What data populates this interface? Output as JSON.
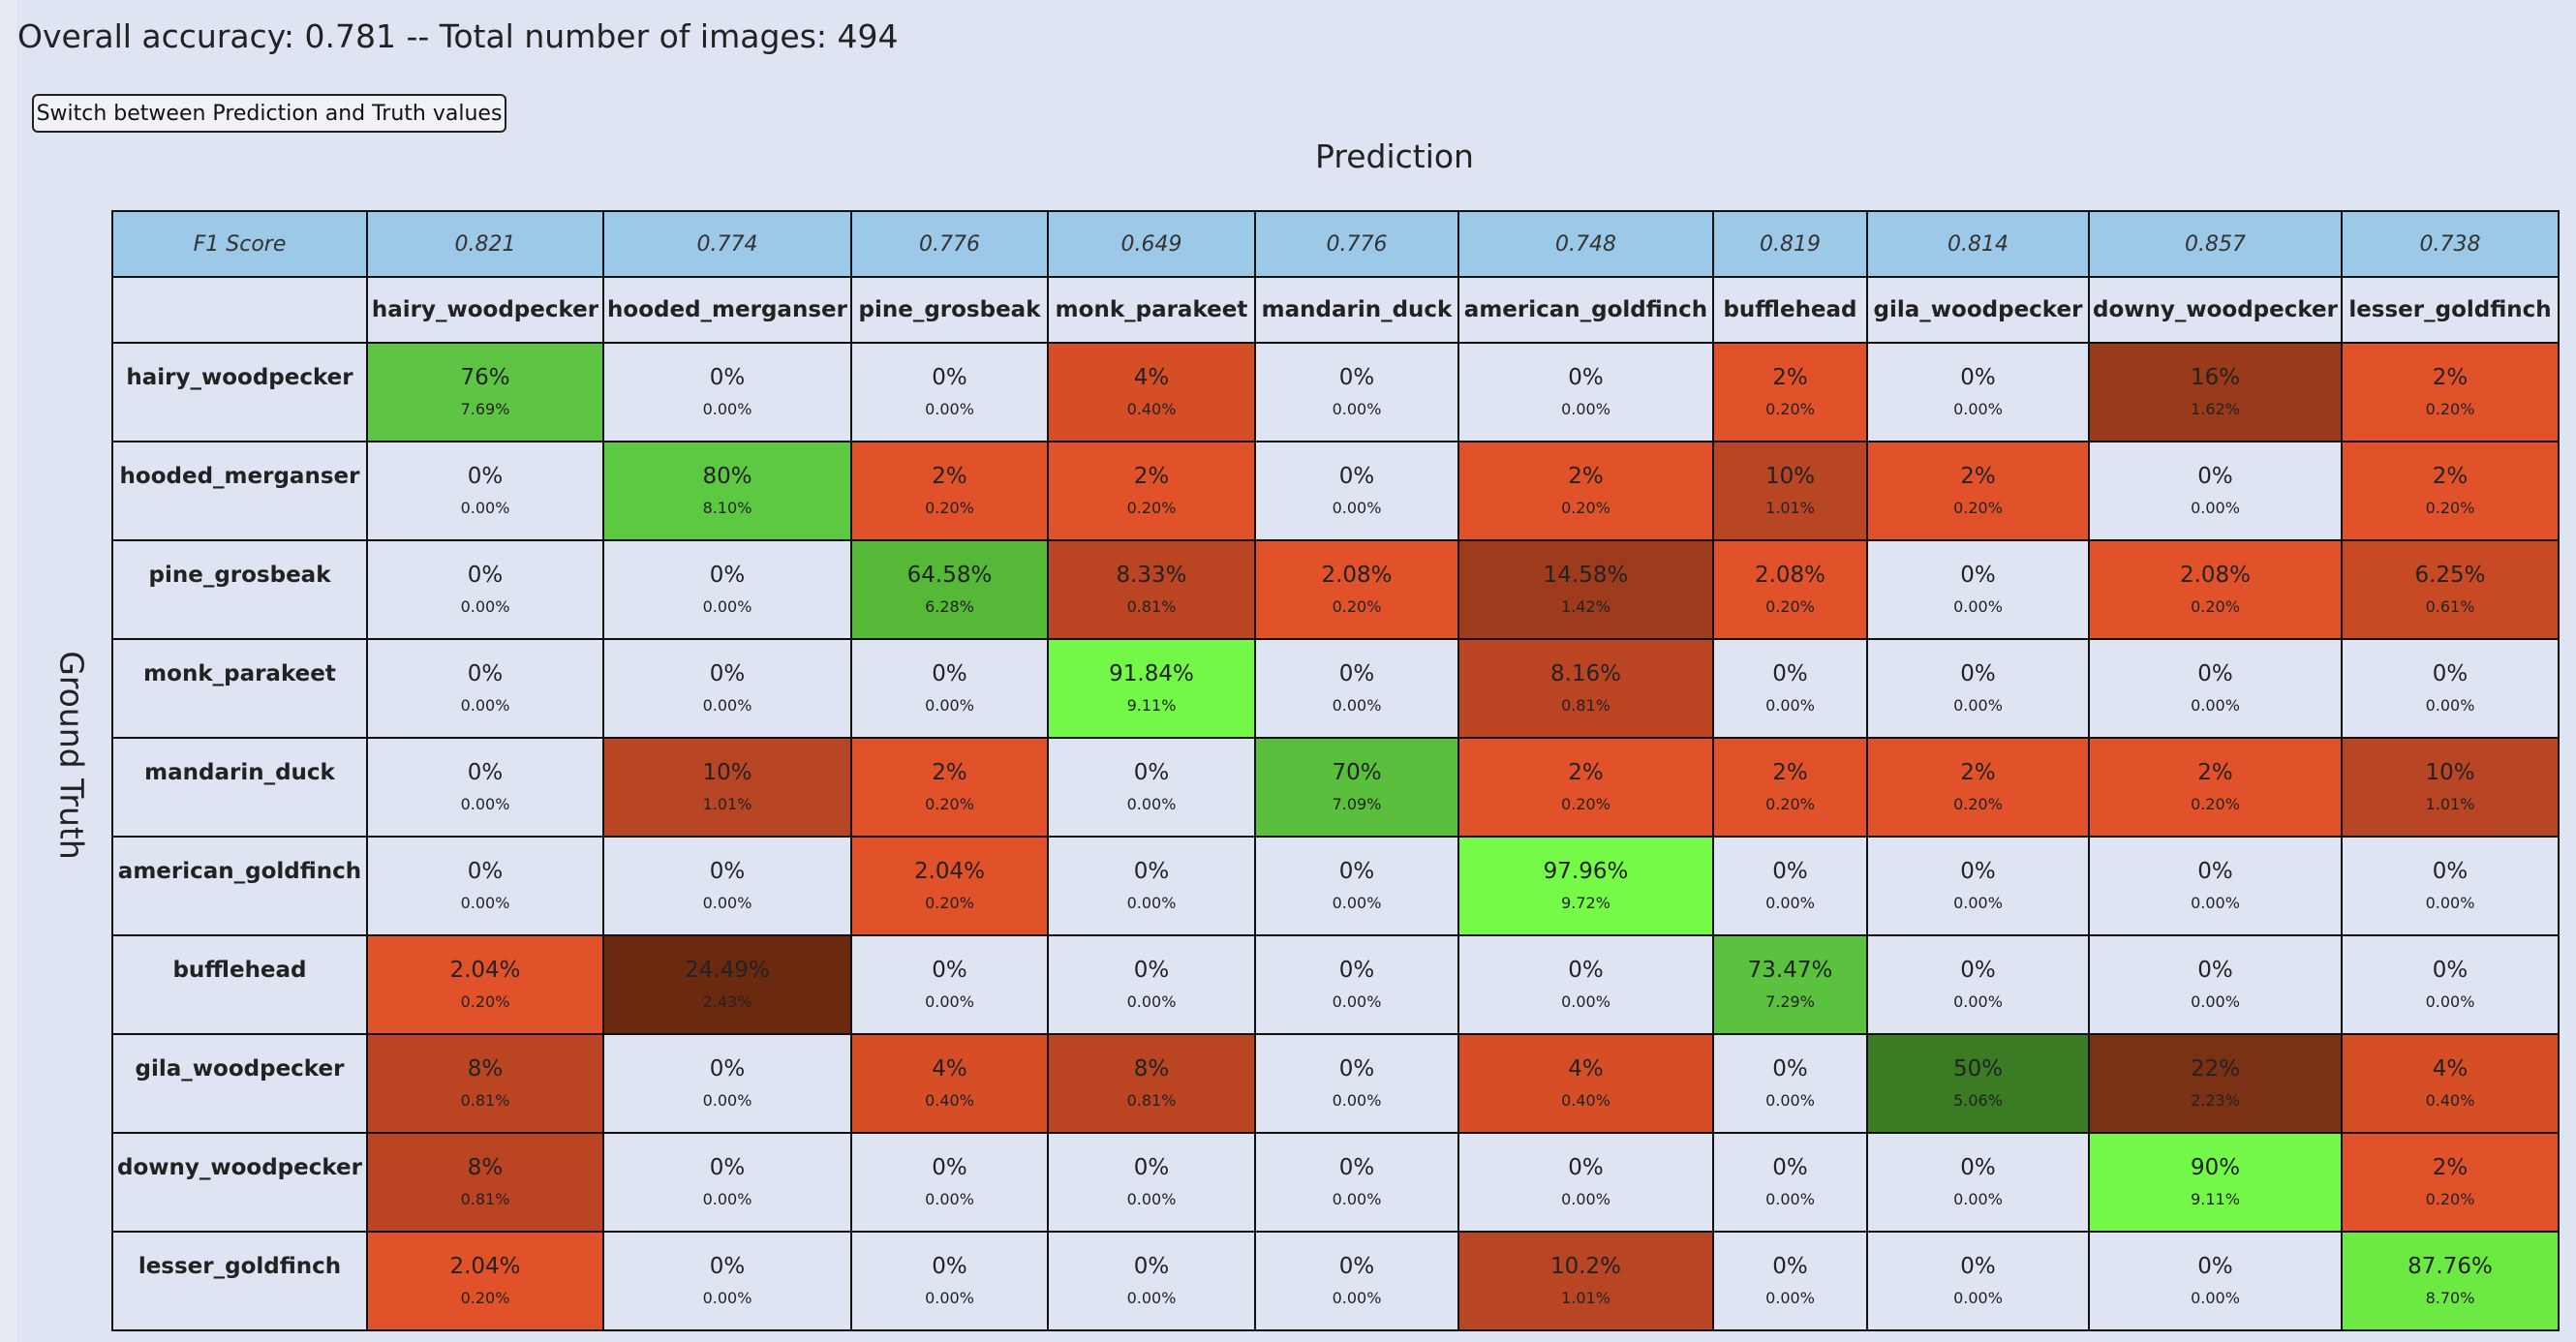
{
  "summary": {
    "text": "Overall accuracy: 0.781 -- Total number of images: 494"
  },
  "toggle_button": {
    "label": "Switch between Prediction and Truth values"
  },
  "axis": {
    "prediction": "Prediction",
    "ground_truth": "Ground Truth"
  },
  "table": {
    "f1_label": "F1 Score",
    "columns": [
      {
        "name": "hairy_woodpecker",
        "f1": "0.821"
      },
      {
        "name": "hooded_merganser",
        "f1": "0.774"
      },
      {
        "name": "pine_grosbeak",
        "f1": "0.776"
      },
      {
        "name": "monk_parakeet",
        "f1": "0.649"
      },
      {
        "name": "mandarin_duck",
        "f1": "0.776"
      },
      {
        "name": "american_goldfinch",
        "f1": "0.748"
      },
      {
        "name": "bufflehead",
        "f1": "0.819"
      },
      {
        "name": "gila_woodpecker",
        "f1": "0.814"
      },
      {
        "name": "downy_woodpecker",
        "f1": "0.857"
      },
      {
        "name": "lesser_goldfinch",
        "f1": "0.738"
      }
    ],
    "rows": [
      {
        "label": "hairy_woodpecker",
        "cells": [
          {
            "pct": "76%",
            "frac": "7.69%",
            "color": "#5ec443"
          },
          {
            "pct": "0%",
            "frac": "0.00%",
            "color": "#dfe4f3"
          },
          {
            "pct": "0%",
            "frac": "0.00%",
            "color": "#dfe4f3"
          },
          {
            "pct": "4%",
            "frac": "0.40%",
            "color": "#d64e26"
          },
          {
            "pct": "0%",
            "frac": "0.00%",
            "color": "#dfe4f3"
          },
          {
            "pct": "0%",
            "frac": "0.00%",
            "color": "#dfe4f3"
          },
          {
            "pct": "2%",
            "frac": "0.20%",
            "color": "#e2522a"
          },
          {
            "pct": "0%",
            "frac": "0.00%",
            "color": "#dfe4f3"
          },
          {
            "pct": "16%",
            "frac": "1.62%",
            "color": "#993a1a"
          },
          {
            "pct": "2%",
            "frac": "0.20%",
            "color": "#e2522a"
          }
        ]
      },
      {
        "label": "hooded_merganser",
        "cells": [
          {
            "pct": "0%",
            "frac": "0.00%",
            "color": "#dfe4f3"
          },
          {
            "pct": "80%",
            "frac": "8.10%",
            "color": "#5dc842"
          },
          {
            "pct": "2%",
            "frac": "0.20%",
            "color": "#e2522a"
          },
          {
            "pct": "2%",
            "frac": "0.20%",
            "color": "#e2522a"
          },
          {
            "pct": "0%",
            "frac": "0.00%",
            "color": "#dfe4f3"
          },
          {
            "pct": "2%",
            "frac": "0.20%",
            "color": "#e2522a"
          },
          {
            "pct": "10%",
            "frac": "1.01%",
            "color": "#b84524"
          },
          {
            "pct": "2%",
            "frac": "0.20%",
            "color": "#e2522a"
          },
          {
            "pct": "0%",
            "frac": "0.00%",
            "color": "#dfe4f3"
          },
          {
            "pct": "2%",
            "frac": "0.20%",
            "color": "#e2522a"
          }
        ]
      },
      {
        "label": "pine_grosbeak",
        "cells": [
          {
            "pct": "0%",
            "frac": "0.00%",
            "color": "#dfe4f3"
          },
          {
            "pct": "0%",
            "frac": "0.00%",
            "color": "#dfe4f3"
          },
          {
            "pct": "64.58%",
            "frac": "6.28%",
            "color": "#55b837"
          },
          {
            "pct": "8.33%",
            "frac": "0.81%",
            "color": "#bb4523"
          },
          {
            "pct": "2.08%",
            "frac": "0.20%",
            "color": "#e2522a"
          },
          {
            "pct": "14.58%",
            "frac": "1.42%",
            "color": "#9e3b1c"
          },
          {
            "pct": "2.08%",
            "frac": "0.20%",
            "color": "#e2522a"
          },
          {
            "pct": "0%",
            "frac": "0.00%",
            "color": "#dfe4f3"
          },
          {
            "pct": "2.08%",
            "frac": "0.20%",
            "color": "#e2522a"
          },
          {
            "pct": "6.25%",
            "frac": "0.61%",
            "color": "#c84a24"
          }
        ]
      },
      {
        "label": "monk_parakeet",
        "cells": [
          {
            "pct": "0%",
            "frac": "0.00%",
            "color": "#dfe4f3"
          },
          {
            "pct": "0%",
            "frac": "0.00%",
            "color": "#dfe4f3"
          },
          {
            "pct": "0%",
            "frac": "0.00%",
            "color": "#dfe4f3"
          },
          {
            "pct": "91.84%",
            "frac": "9.11%",
            "color": "#73f847"
          },
          {
            "pct": "0%",
            "frac": "0.00%",
            "color": "#dfe4f3"
          },
          {
            "pct": "8.16%",
            "frac": "0.81%",
            "color": "#bb4523"
          },
          {
            "pct": "0%",
            "frac": "0.00%",
            "color": "#dfe4f3"
          },
          {
            "pct": "0%",
            "frac": "0.00%",
            "color": "#dfe4f3"
          },
          {
            "pct": "0%",
            "frac": "0.00%",
            "color": "#dfe4f3"
          },
          {
            "pct": "0%",
            "frac": "0.00%",
            "color": "#dfe4f3"
          }
        ]
      },
      {
        "label": "mandarin_duck",
        "cells": [
          {
            "pct": "0%",
            "frac": "0.00%",
            "color": "#dfe4f3"
          },
          {
            "pct": "10%",
            "frac": "1.01%",
            "color": "#b84524"
          },
          {
            "pct": "2%",
            "frac": "0.20%",
            "color": "#e2522a"
          },
          {
            "pct": "0%",
            "frac": "0.00%",
            "color": "#dfe4f3"
          },
          {
            "pct": "70%",
            "frac": "7.09%",
            "color": "#59bf3d"
          },
          {
            "pct": "2%",
            "frac": "0.20%",
            "color": "#e2522a"
          },
          {
            "pct": "2%",
            "frac": "0.20%",
            "color": "#e2522a"
          },
          {
            "pct": "2%",
            "frac": "0.20%",
            "color": "#e2522a"
          },
          {
            "pct": "2%",
            "frac": "0.20%",
            "color": "#e2522a"
          },
          {
            "pct": "10%",
            "frac": "1.01%",
            "color": "#b84524"
          }
        ]
      },
      {
        "label": "american_goldfinch",
        "cells": [
          {
            "pct": "0%",
            "frac": "0.00%",
            "color": "#dfe4f3"
          },
          {
            "pct": "0%",
            "frac": "0.00%",
            "color": "#dfe4f3"
          },
          {
            "pct": "2.04%",
            "frac": "0.20%",
            "color": "#e2522a"
          },
          {
            "pct": "0%",
            "frac": "0.00%",
            "color": "#dfe4f3"
          },
          {
            "pct": "0%",
            "frac": "0.00%",
            "color": "#dfe4f3"
          },
          {
            "pct": "97.96%",
            "frac": "9.72%",
            "color": "#75fb47"
          },
          {
            "pct": "0%",
            "frac": "0.00%",
            "color": "#dfe4f3"
          },
          {
            "pct": "0%",
            "frac": "0.00%",
            "color": "#dfe4f3"
          },
          {
            "pct": "0%",
            "frac": "0.00%",
            "color": "#dfe4f3"
          },
          {
            "pct": "0%",
            "frac": "0.00%",
            "color": "#dfe4f3"
          }
        ]
      },
      {
        "label": "bufflehead",
        "cells": [
          {
            "pct": "2.04%",
            "frac": "0.20%",
            "color": "#e2522a"
          },
          {
            "pct": "24.49%",
            "frac": "2.43%",
            "color": "#6b2a10"
          },
          {
            "pct": "0%",
            "frac": "0.00%",
            "color": "#dfe4f3"
          },
          {
            "pct": "0%",
            "frac": "0.00%",
            "color": "#dfe4f3"
          },
          {
            "pct": "0%",
            "frac": "0.00%",
            "color": "#dfe4f3"
          },
          {
            "pct": "0%",
            "frac": "0.00%",
            "color": "#dfe4f3"
          },
          {
            "pct": "73.47%",
            "frac": "7.29%",
            "color": "#5bc23f"
          },
          {
            "pct": "0%",
            "frac": "0.00%",
            "color": "#dfe4f3"
          },
          {
            "pct": "0%",
            "frac": "0.00%",
            "color": "#dfe4f3"
          },
          {
            "pct": "0%",
            "frac": "0.00%",
            "color": "#dfe4f3"
          }
        ]
      },
      {
        "label": "gila_woodpecker",
        "cells": [
          {
            "pct": "8%",
            "frac": "0.81%",
            "color": "#bb4523"
          },
          {
            "pct": "0%",
            "frac": "0.00%",
            "color": "#dfe4f3"
          },
          {
            "pct": "4%",
            "frac": "0.40%",
            "color": "#d64e26"
          },
          {
            "pct": "8%",
            "frac": "0.81%",
            "color": "#bb4523"
          },
          {
            "pct": "0%",
            "frac": "0.00%",
            "color": "#dfe4f3"
          },
          {
            "pct": "4%",
            "frac": "0.40%",
            "color": "#d64e26"
          },
          {
            "pct": "0%",
            "frac": "0.00%",
            "color": "#dfe4f3"
          },
          {
            "pct": "50%",
            "frac": "5.06%",
            "color": "#3a7b24"
          },
          {
            "pct": "22%",
            "frac": "2.23%",
            "color": "#7a3114"
          },
          {
            "pct": "4%",
            "frac": "0.40%",
            "color": "#d64e26"
          }
        ]
      },
      {
        "label": "downy_woodpecker",
        "cells": [
          {
            "pct": "8%",
            "frac": "0.81%",
            "color": "#bb4523"
          },
          {
            "pct": "0%",
            "frac": "0.00%",
            "color": "#dfe4f3"
          },
          {
            "pct": "0%",
            "frac": "0.00%",
            "color": "#dfe4f3"
          },
          {
            "pct": "0%",
            "frac": "0.00%",
            "color": "#dfe4f3"
          },
          {
            "pct": "0%",
            "frac": "0.00%",
            "color": "#dfe4f3"
          },
          {
            "pct": "0%",
            "frac": "0.00%",
            "color": "#dfe4f3"
          },
          {
            "pct": "0%",
            "frac": "0.00%",
            "color": "#dfe4f3"
          },
          {
            "pct": "0%",
            "frac": "0.00%",
            "color": "#dfe4f3"
          },
          {
            "pct": "90%",
            "frac": "9.11%",
            "color": "#73f847"
          },
          {
            "pct": "2%",
            "frac": "0.20%",
            "color": "#e2522a"
          }
        ]
      },
      {
        "label": "lesser_goldfinch",
        "cells": [
          {
            "pct": "2.04%",
            "frac": "0.20%",
            "color": "#e2522a"
          },
          {
            "pct": "0%",
            "frac": "0.00%",
            "color": "#dfe4f3"
          },
          {
            "pct": "0%",
            "frac": "0.00%",
            "color": "#dfe4f3"
          },
          {
            "pct": "0%",
            "frac": "0.00%",
            "color": "#dfe4f3"
          },
          {
            "pct": "0%",
            "frac": "0.00%",
            "color": "#dfe4f3"
          },
          {
            "pct": "10.2%",
            "frac": "1.01%",
            "color": "#b84524"
          },
          {
            "pct": "0%",
            "frac": "0.00%",
            "color": "#dfe4f3"
          },
          {
            "pct": "0%",
            "frac": "0.00%",
            "color": "#dfe4f3"
          },
          {
            "pct": "0%",
            "frac": "0.00%",
            "color": "#dfe4f3"
          },
          {
            "pct": "87.76%",
            "frac": "8.70%",
            "color": "#6cea43"
          }
        ]
      }
    ]
  }
}
